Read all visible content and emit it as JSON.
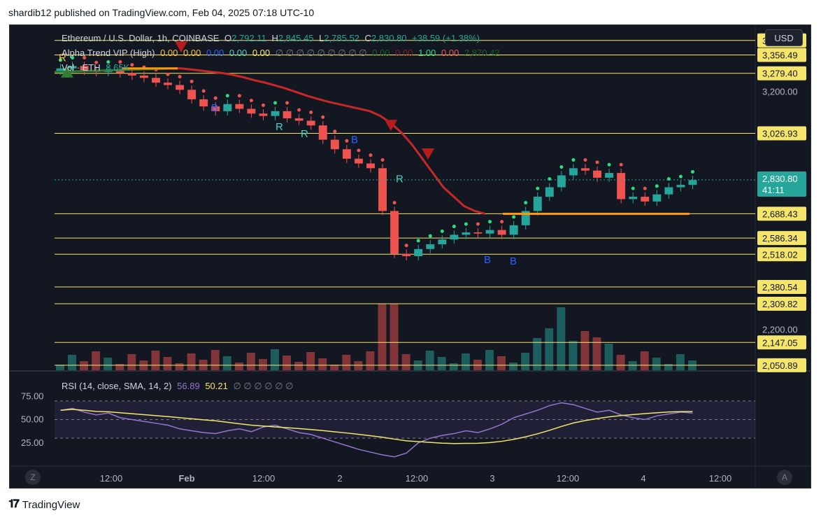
{
  "caption": "shardib12 published on TradingView.com, Feb 04, 2025 07:18 UTC-10",
  "brand": "TradingView",
  "currency_button": "USD",
  "corner_left": "Z",
  "corner_right": "A",
  "legend": {
    "symbol": "Ethereum / U.S. Dollar, 1h, COINBASE",
    "o_label": "O",
    "o_value": "2,792.11",
    "h_label": "H",
    "h_value": "2,845.45",
    "l_label": "L",
    "l_value": "2,785.52",
    "c_label": "C",
    "c_value": "2,830.80",
    "change": "+38.59 (+1.38%)",
    "alpha_name": "Alpha Trend VIP (High)",
    "alpha_values": [
      "0.00",
      "0.00",
      "0.00",
      "0.00",
      "0.00"
    ],
    "alpha_empties": "∅ ∅ ∅ ∅ ∅ ∅ ∅ ∅ ∅",
    "alpha_tail": [
      "0.00",
      "0.00",
      "1.00",
      "0.00",
      "2,870.42"
    ],
    "vol_label": "Vol · ETH",
    "vol_value": "8.65K",
    "rsi_name": "RSI (14, close, SMA, 14, 2)",
    "rsi_value": "56.89",
    "rsi_ma": "50.21",
    "rsi_empties": "∅ ∅ ∅ ∅ ∅ ∅"
  },
  "chart_data": {
    "type": "candlestick",
    "x_ticks": [
      "12:00",
      "Feb",
      "12:00",
      "2",
      "12:00",
      "3",
      "12:00",
      "4",
      "12:00"
    ],
    "y_ticks": [
      "3,200.00",
      "2,200.00"
    ],
    "last_price": "2,830.80",
    "countdown": "41:11",
    "ylim": [
      2030,
      3470
    ],
    "horizontal_levels": [
      {
        "label": "3,417.68",
        "value": 3417.68
      },
      {
        "label": "3,356.49",
        "value": 3356.49
      },
      {
        "label": "3,279.40",
        "value": 3279.4
      },
      {
        "label": "3,026.93",
        "value": 3026.93
      },
      {
        "label": "2,688.43",
        "value": 2688.43
      },
      {
        "label": "2,586.34",
        "value": 2586.34
      },
      {
        "label": "2,518.02",
        "value": 2518.02
      },
      {
        "label": "2,380.54",
        "value": 2380.54
      },
      {
        "label": "2,309.82",
        "value": 2309.82
      },
      {
        "label": "2,147.05",
        "value": 2147.05
      },
      {
        "label": "2,050.89",
        "value": 2050.89
      }
    ],
    "close_path": [
      3300,
      3310,
      3290,
      3285,
      3292,
      3280,
      3270,
      3260,
      3240,
      3230,
      3210,
      3170,
      3140,
      3120,
      3150,
      3130,
      3110,
      3100,
      3120,
      3090,
      3080,
      3060,
      3000,
      2960,
      2920,
      2900,
      2880,
      2700,
      2520,
      2510,
      2540,
      2560,
      2580,
      2600,
      2610,
      2605,
      2620,
      2600,
      2640,
      2700,
      2760,
      2800,
      2850,
      2880,
      2870,
      2840,
      2860,
      2750,
      2760,
      2740,
      2770,
      2800,
      2810,
      2830
    ],
    "markers": [
      {
        "label": "R",
        "value": 3330,
        "color": "#f5c242"
      },
      {
        "label": "B",
        "value": 3120,
        "color": "#2962ff"
      },
      {
        "label": "R",
        "value": 3040,
        "color": "#4dd0c4"
      },
      {
        "label": "R",
        "value": 3010,
        "color": "#4dd0c4"
      },
      {
        "label": "B",
        "value": 2985,
        "color": "#2962ff"
      },
      {
        "label": "R",
        "value": 2820,
        "color": "#4dd0c4"
      },
      {
        "label": "B",
        "value": 2480,
        "color": "#2962ff"
      },
      {
        "label": "B",
        "value": 2475,
        "color": "#2962ff"
      }
    ],
    "rsi_ticks": [
      "75.00",
      "50.00",
      "25.00"
    ],
    "rsi_ylim": [
      0,
      100
    ],
    "rsi_bands": [
      70,
      50,
      30
    ]
  },
  "colors": {
    "background": "#131722",
    "up": "#26a69a",
    "down": "#ef5350",
    "level_line": "#f5e56b",
    "trend_red": "#c62828",
    "support_orange": "#ff9800",
    "rsi_line": "#9575cd",
    "rsi_ma": "#f5e56b",
    "price_label_bg": "#26a69a"
  }
}
